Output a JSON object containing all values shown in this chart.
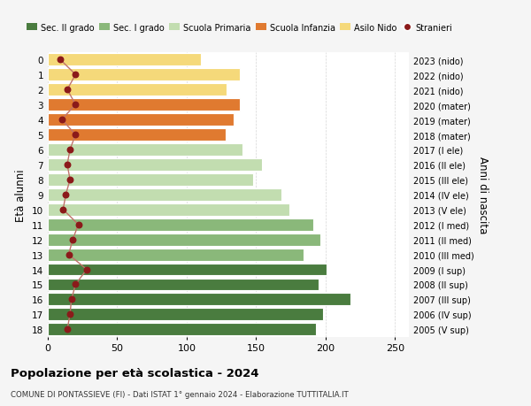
{
  "ages": [
    18,
    17,
    16,
    15,
    14,
    13,
    12,
    11,
    10,
    9,
    8,
    7,
    6,
    5,
    4,
    3,
    2,
    1,
    0
  ],
  "bar_values": [
    193,
    198,
    218,
    195,
    201,
    184,
    196,
    191,
    174,
    168,
    148,
    154,
    140,
    128,
    134,
    138,
    129,
    138,
    110
  ],
  "stranieri": [
    14,
    16,
    17,
    20,
    28,
    15,
    18,
    22,
    11,
    13,
    16,
    14,
    16,
    20,
    10,
    20,
    14,
    20,
    9
  ],
  "right_labels": [
    "2005 (V sup)",
    "2006 (IV sup)",
    "2007 (III sup)",
    "2008 (II sup)",
    "2009 (I sup)",
    "2010 (III med)",
    "2011 (II med)",
    "2012 (I med)",
    "2013 (V ele)",
    "2014 (IV ele)",
    "2015 (III ele)",
    "2016 (II ele)",
    "2017 (I ele)",
    "2018 (mater)",
    "2019 (mater)",
    "2020 (mater)",
    "2021 (nido)",
    "2022 (nido)",
    "2023 (nido)"
  ],
  "bar_colors": [
    "#4a7c3f",
    "#4a7c3f",
    "#4a7c3f",
    "#4a7c3f",
    "#4a7c3f",
    "#8ab87a",
    "#8ab87a",
    "#8ab87a",
    "#c2ddb0",
    "#c2ddb0",
    "#c2ddb0",
    "#c2ddb0",
    "#c2ddb0",
    "#e07a30",
    "#e07a30",
    "#e07a30",
    "#f5d97a",
    "#f5d97a",
    "#f5d97a"
  ],
  "stranieri_color": "#8b1a1a",
  "stranieri_line_color": "#c0736a",
  "legend_items": [
    {
      "label": "Sec. II grado",
      "color": "#4a7c3f"
    },
    {
      "label": "Sec. I grado",
      "color": "#8ab87a"
    },
    {
      "label": "Scuola Primaria",
      "color": "#c2ddb0"
    },
    {
      "label": "Scuola Infanzia",
      "color": "#e07a30"
    },
    {
      "label": "Asilo Nido",
      "color": "#f5d97a"
    },
    {
      "label": "Stranieri",
      "color": "#8b1a1a"
    }
  ],
  "ylabel_left": "Età alunni",
  "ylabel_right": "Anni di nascita",
  "xlim": [
    0,
    260
  ],
  "xticks": [
    0,
    50,
    100,
    150,
    200,
    250
  ],
  "title": "Popolazione per età scolastica - 2024",
  "subtitle": "COMUNE DI PONTASSIEVE (FI) - Dati ISTAT 1° gennaio 2024 - Elaborazione TUTTITALIA.IT",
  "bg_color": "#f5f5f5",
  "plot_bg_color": "#ffffff",
  "grid_color": "#cccccc"
}
